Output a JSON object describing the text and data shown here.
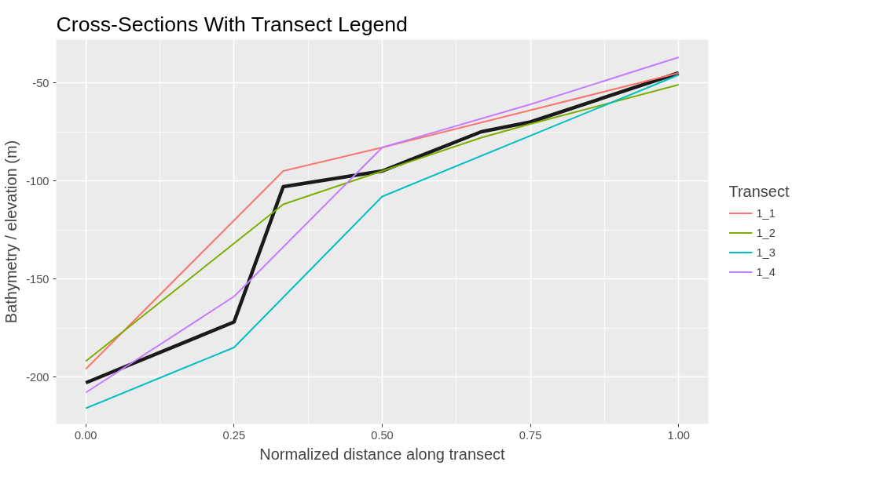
{
  "chart_data": {
    "type": "line",
    "title": "Cross-Sections With Transect Legend",
    "xlabel": "Normalized distance along transect",
    "ylabel": "Bathymetry / elevation (m)",
    "legend_title": "Transect",
    "legend": "right",
    "grid": true,
    "xlim": [
      -0.05,
      1.05
    ],
    "xticks": [
      {
        "value": 0,
        "label": "0.00"
      },
      {
        "value": 0.25,
        "label": "0.25"
      },
      {
        "value": 0.5,
        "label": "0.50"
      },
      {
        "value": 0.75,
        "label": "0.75"
      },
      {
        "value": 1,
        "label": "1.00"
      }
    ],
    "ylim": [
      -224,
      -28
    ],
    "yticks": [
      -200,
      -150,
      -100,
      -50
    ],
    "series": [
      {
        "name": "1_1",
        "color": "#f8766d",
        "x": [
          0,
          0.333,
          0.5,
          1
        ],
        "values": [
          -196,
          -95,
          -83,
          -45
        ]
      },
      {
        "name": "1_2",
        "color": "#7cae00",
        "x": [
          0,
          0.333,
          0.5,
          0.667,
          0.75,
          1
        ],
        "values": [
          -192,
          -112,
          -95,
          -78,
          -71,
          -51
        ]
      },
      {
        "name": "1_3",
        "color": "#00bfc4",
        "x": [
          0,
          0.25,
          0.5,
          1
        ],
        "values": [
          -216,
          -185,
          -108,
          -46
        ]
      },
      {
        "name": "1_4",
        "color": "#c77cff",
        "x": [
          0,
          0.25,
          0.5,
          0.75,
          1
        ],
        "values": [
          -208,
          -159,
          -83,
          -61,
          -37
        ]
      },
      {
        "color": "#1a1a1a",
        "x": [
          0,
          0.25,
          0.333,
          0.5,
          0.667,
          0.75,
          1
        ],
        "values": [
          -203,
          -172,
          -103,
          -95,
          -75,
          -70,
          -45
        ]
      }
    ]
  }
}
